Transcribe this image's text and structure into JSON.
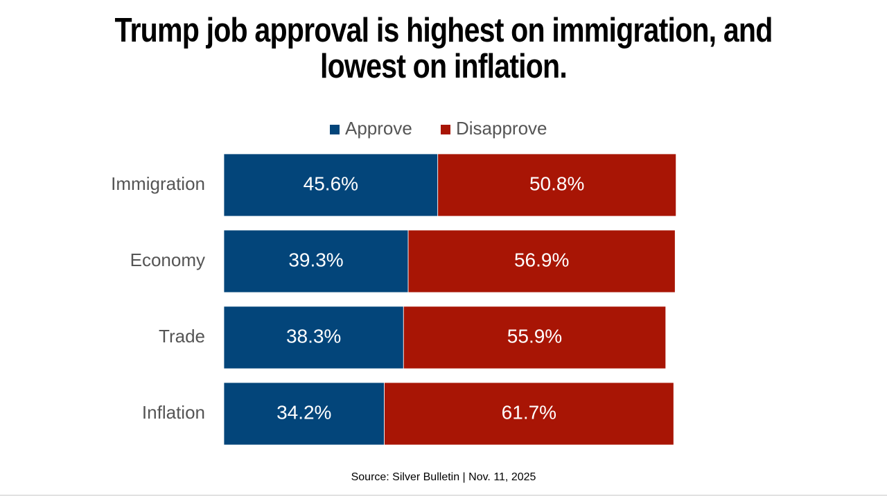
{
  "title_lines": [
    "Trump job approval is highest on immigration, and",
    "lowest on inflation."
  ],
  "source": "Source: Silver Bulletin | Nov. 11, 2025",
  "colors": {
    "approve": "#03457a",
    "disapprove": "#a81505",
    "text": "#ffffff",
    "category": "#555555",
    "legend": "#555555"
  },
  "chart_data": {
    "type": "bar",
    "orientation": "horizontal",
    "stacked": true,
    "title": "Trump job approval is highest on immigration, and lowest on inflation.",
    "categories": [
      "Immigration",
      "Economy",
      "Trade",
      "Inflation"
    ],
    "series": [
      {
        "name": "Approve",
        "values": [
          45.6,
          39.3,
          38.3,
          34.2
        ],
        "labels": [
          "45.6%",
          "39.3%",
          "38.3%",
          "34.2%"
        ]
      },
      {
        "name": "Disapprove",
        "values": [
          50.8,
          56.9,
          55.9,
          61.7
        ],
        "labels": [
          "50.8%",
          "56.9%",
          "55.9%",
          "61.7%"
        ]
      }
    ],
    "xlim": [
      0,
      100
    ],
    "legend": "top-center",
    "grid": false
  }
}
